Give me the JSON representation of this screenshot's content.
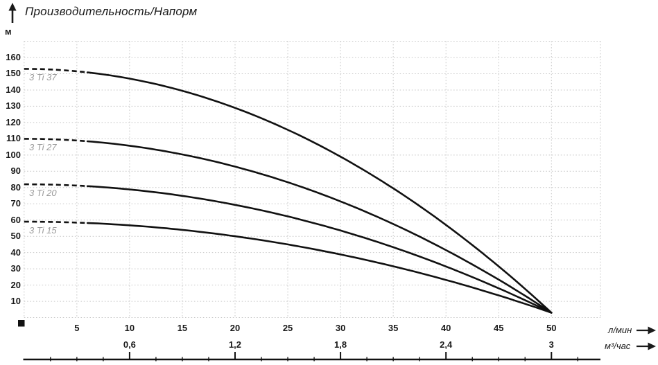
{
  "title": "Производительность/Напорм",
  "y_axis": {
    "unit_label": "м",
    "ticks": [
      160,
      150,
      140,
      130,
      120,
      110,
      100,
      90,
      80,
      70,
      60,
      50,
      40,
      30,
      20,
      10
    ]
  },
  "x_axis_primary": {
    "unit_label": "л/мин",
    "ticks": [
      5,
      10,
      15,
      20,
      25,
      30,
      35,
      40,
      45,
      50
    ]
  },
  "x_axis_secondary": {
    "unit_label": "м³/час",
    "ticks": [
      {
        "label": "0,6",
        "value": 0.6
      },
      {
        "label": "1,2",
        "value": 1.2
      },
      {
        "label": "1,8",
        "value": 1.8
      },
      {
        "label": "2,4",
        "value": 2.4
      },
      {
        "label": "3",
        "value": 3.0
      }
    ],
    "minor_tick_step": 0.15
  },
  "chart_data": {
    "type": "line",
    "title": "Производительность/Напорм",
    "ylabel": "м",
    "xlabel_primary": "л/мин",
    "xlabel_secondary": "м³/час",
    "xlim": [
      0,
      54.7
    ],
    "ylim": [
      0,
      170
    ],
    "x_grid_step_lmin": 5,
    "y_grid_step_m": 10,
    "grid": true,
    "unit_conversion": "50 л/мин = 3 м³/час",
    "dashed_until_x_lmin": 6,
    "x_lmin": [
      0,
      5,
      10,
      15,
      20,
      25,
      30,
      35,
      40,
      45,
      50
    ],
    "series": [
      {
        "name": "3 Ti 37",
        "h0": 153,
        "x_end": 50,
        "h_end": 3,
        "head_m": [
          153,
          151.5,
          147,
          139.5,
          129,
          115.5,
          99,
          79.5,
          57,
          31.5,
          3
        ]
      },
      {
        "name": "3 Ti 27",
        "h0": 110,
        "x_end": 50,
        "h_end": 3,
        "head_m": [
          110,
          108.9,
          105.7,
          100.4,
          92.9,
          83.3,
          71.5,
          57.6,
          41.5,
          23.3,
          3
        ]
      },
      {
        "name": "3 Ti 20",
        "h0": 82,
        "x_end": 50,
        "h_end": 3,
        "head_m": [
          82,
          81.2,
          78.8,
          74.9,
          69.4,
          62.3,
          53.6,
          43.3,
          31.4,
          18,
          3
        ]
      },
      {
        "name": "3 Ti 15",
        "h0": 59,
        "x_end": 50,
        "h_end": 3,
        "head_m": [
          59,
          58.4,
          56.8,
          54,
          50,
          45,
          38.8,
          31.6,
          23.2,
          13.6,
          3
        ]
      }
    ],
    "legend_position": "labels-on-chart"
  },
  "colors": {
    "line": "#111111",
    "grid": "#c7c7c7",
    "text": "#1a1a1a",
    "series_label": "#9a9a9a"
  }
}
